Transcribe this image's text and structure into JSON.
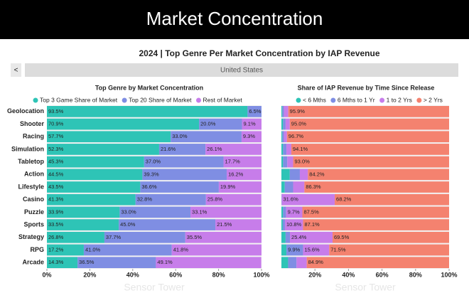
{
  "header": {
    "title": "Market Concentration",
    "subtitle": "2024 | Top Genre Per Market Concentration by IAP Revenue"
  },
  "filter": {
    "back": "<",
    "selected": "United States"
  },
  "watermark": "Sensor Tower",
  "chart_data": [
    {
      "type": "bar",
      "orientation": "horizontal",
      "stacked": true,
      "title": "Top Genre by Market Concentration",
      "categories": [
        "Geolocation",
        "Shooter",
        "Racing",
        "Simulation",
        "Tabletop",
        "Action",
        "Lifestyle",
        "Casino",
        "Puzzle",
        "Sports",
        "Strategy",
        "RPG",
        "Arcade"
      ],
      "series": [
        {
          "name": "Top 3 Game Share of Market",
          "color": "#2ec4b6",
          "values": [
            93.5,
            70.9,
            57.7,
            52.3,
            45.3,
            44.5,
            43.5,
            41.3,
            33.9,
            33.5,
            26.8,
            17.2,
            14.3
          ],
          "value_labels": [
            "93.5%",
            "70.9%",
            "57.7%",
            "52.3%",
            "45.3%",
            "44.5%",
            "43.5%",
            "41.3%",
            "33.9%",
            "33.5%",
            "26.8%",
            "17.2%",
            "14.3%"
          ]
        },
        {
          "name": "Top 20 Share of Market",
          "color": "#7f8ee3",
          "values": [
            6.5,
            20.0,
            33.0,
            21.6,
            37.0,
            39.3,
            36.6,
            32.8,
            33.0,
            45.0,
            37.7,
            41.0,
            36.5
          ],
          "value_labels": [
            "6.5%",
            "20.0%",
            "33.0%",
            "21.6%",
            "37.0%",
            "39.3%",
            "36.6%",
            "32.8%",
            "33.0%",
            "45.0%",
            "37.7%",
            "41.0%",
            "36.5%"
          ]
        },
        {
          "name": "Rest of Market",
          "color": "#c77dea",
          "values": [
            0,
            9.1,
            9.3,
            26.1,
            17.7,
            16.2,
            19.9,
            25.8,
            33.1,
            21.5,
            35.5,
            41.8,
            49.1
          ],
          "value_labels": [
            null,
            "9.1%",
            "9.3%",
            "26.1%",
            "17.7%",
            "16.2%",
            "19.9%",
            "25.8%",
            "33.1%",
            "21.5%",
            "35.5%",
            "41.8%",
            "49.1%"
          ]
        }
      ],
      "xlim": [
        0,
        100
      ],
      "xticks": [
        {
          "value": 0,
          "label": "0%"
        },
        {
          "value": 20,
          "label": "20%"
        },
        {
          "value": 40,
          "label": "40%"
        },
        {
          "value": 60,
          "label": "60%"
        },
        {
          "value": 80,
          "label": "80%"
        },
        {
          "value": 100,
          "label": "100%"
        }
      ],
      "legend": "top"
    },
    {
      "type": "bar",
      "orientation": "horizontal",
      "stacked": true,
      "title": "Share of IAP Revenue by Time Since Release",
      "categories": [
        "Geolocation",
        "Shooter",
        "Racing",
        "Simulation",
        "Tabletop",
        "Action",
        "Lifestyle",
        "Casino",
        "Puzzle",
        "Sports",
        "Strategy",
        "RPG",
        "Arcade"
      ],
      "series": [
        {
          "name": "< 6 Mths",
          "color": "#2ec4b6",
          "values": [
            0.5,
            1.0,
            0.5,
            1.0,
            1.0,
            5.0,
            2.0,
            0.1,
            1.0,
            0.8,
            2.5,
            3.0,
            4.0
          ],
          "value_labels": [
            null,
            null,
            null,
            null,
            null,
            null,
            null,
            null,
            null,
            null,
            null,
            null,
            null
          ]
        },
        {
          "name": "6 Mths to 1 Yr",
          "color": "#7f8ee3",
          "values": [
            1.0,
            1.5,
            1.0,
            2.0,
            2.5,
            6.0,
            5.0,
            0.1,
            1.8,
            1.3,
            2.6,
            9.9,
            5.0
          ],
          "value_labels": [
            null,
            null,
            null,
            null,
            null,
            null,
            null,
            null,
            null,
            null,
            null,
            "9.9%",
            null
          ]
        },
        {
          "name": "1 to 2 Yrs",
          "color": "#c77dea",
          "values": [
            2.6,
            2.5,
            1.8,
            2.9,
            3.5,
            4.8,
            6.7,
            31.6,
            9.7,
            10.8,
            25.4,
            15.6,
            6.1
          ],
          "value_labels": [
            null,
            null,
            null,
            null,
            null,
            null,
            null,
            "31.6%",
            "9.7%",
            "10.8%",
            "25.4%",
            "15.6%",
            null
          ]
        },
        {
          "name": "> 2 Yrs",
          "color": "#f4826f",
          "values": [
            95.9,
            95.0,
            96.7,
            94.1,
            93.0,
            84.2,
            86.3,
            68.2,
            87.5,
            87.1,
            69.5,
            71.5,
            84.9
          ],
          "value_labels": [
            "95.9%",
            "95.0%",
            "96.7%",
            "94.1%",
            "93.0%",
            "84.2%",
            "86.3%",
            "68.2%",
            "87.5%",
            "87.1%",
            "69.5%",
            "71.5%",
            "84.9%"
          ]
        }
      ],
      "xlim": [
        0,
        100
      ],
      "xticks": [
        {
          "value": 20,
          "label": "20%"
        },
        {
          "value": 40,
          "label": "40%"
        },
        {
          "value": 60,
          "label": "60%"
        },
        {
          "value": 80,
          "label": "80%"
        },
        {
          "value": 100,
          "label": "100%"
        }
      ],
      "legend": "top"
    }
  ]
}
